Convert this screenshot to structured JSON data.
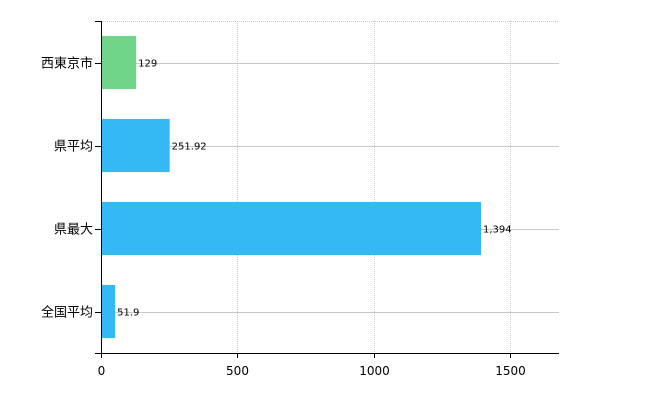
{
  "chart_data": {
    "type": "bar",
    "orientation": "horizontal",
    "categories": [
      "西東京市",
      "県平均",
      "県最大",
      "全国平均"
    ],
    "values": [
      129,
      251.92,
      1394,
      51.9
    ],
    "value_labels": [
      "129",
      "251.92",
      "1,394",
      "51.9"
    ],
    "colors": [
      "#70d48a",
      "#35b9f5",
      "#35b9f5",
      "#35b9f5"
    ],
    "xlim": [
      0,
      1680
    ],
    "xticks": [
      0,
      500,
      1000,
      1500
    ],
    "xtick_labels": [
      "0",
      "500",
      "1000",
      "1500"
    ],
    "grid": true,
    "grid_style": "dotted"
  }
}
